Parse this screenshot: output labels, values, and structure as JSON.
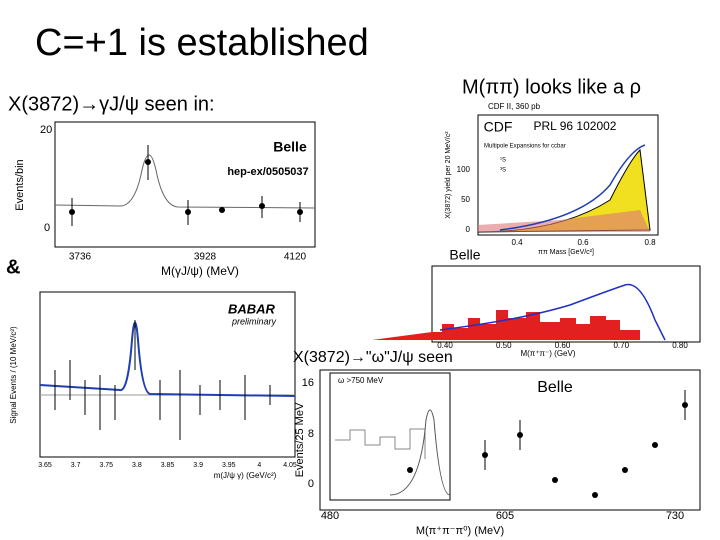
{
  "slide": {
    "title": "C=+1 is established",
    "left_heading": "X(3872)→γJ/ψ seen in:",
    "ampersand": "&",
    "right_heading": "M(ππ) looks like a ρ",
    "omega_heading": "X(3872)→\"ω\"J/ψ seen"
  },
  "belle_gamma": {
    "experiment": "Belle",
    "reference": "hep-ex/0505037",
    "y_label": "Events/bin",
    "x_label": "M(γJ/ψ) (MeV)",
    "yticks": [
      "20",
      "0"
    ],
    "xticks": [
      "3736",
      "3928",
      "4120"
    ]
  },
  "babar": {
    "logo": "BABAR",
    "note": "preliminary",
    "y_label": "Signal Events / (10 MeV/c²)",
    "x_label": "m(J/ψ γ) (GeV/c²)",
    "xticks": [
      "3.65",
      "3.7",
      "3.75",
      "3.8",
      "3.85",
      "3.9",
      "3.95",
      "4",
      "4.05"
    ]
  },
  "cdf": {
    "experiment": "CDF",
    "reference": "PRL 96 102002",
    "run": "CDF II, 360 pb",
    "y_label": "X(3872) yield per 20 MeV/c²",
    "x_label": "ππ Mass [GeV/c²]",
    "legend": [
      "Multipole Expansions for ccbar",
      "¹S",
      "³S"
    ],
    "xticks": [
      "0.4",
      "0.6",
      "0.8"
    ],
    "yticks": [
      "100",
      "50",
      "0"
    ]
  },
  "belle_pipi": {
    "experiment": "Belle",
    "x_label": "M(π⁺π⁻) (GeV)",
    "xticks": [
      "0.40",
      "0.50",
      "0.60",
      "0.70",
      "0.80"
    ]
  },
  "belle_omega": {
    "experiment": "Belle",
    "inset": "ω >750 MeV",
    "y_label": "Events/25 MeV",
    "x_label": "M(π⁺π⁻π⁰) (MeV)",
    "yticks": [
      "16",
      "8",
      "0"
    ],
    "xticks": [
      "480",
      "605",
      "730"
    ]
  }
}
